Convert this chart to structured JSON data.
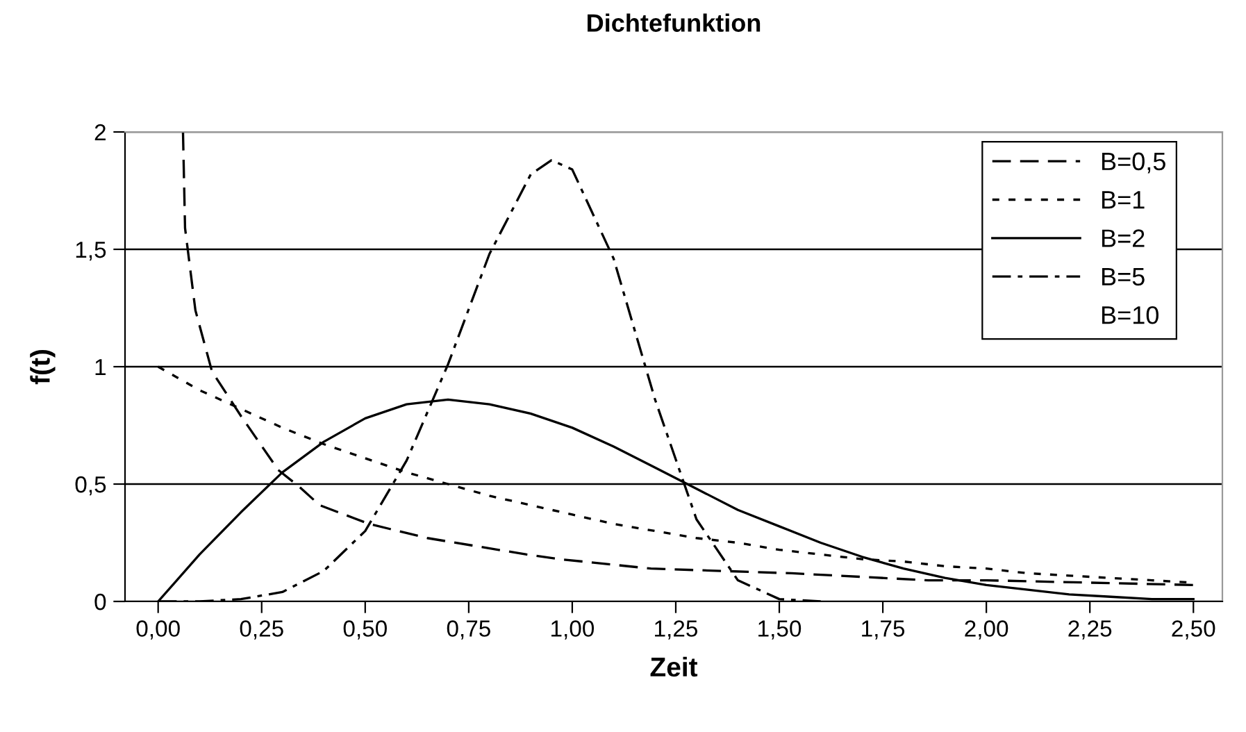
{
  "chart_data": {
    "type": "line",
    "title": "Dichtefunktion",
    "xlabel": "Zeit",
    "ylabel": "f(t)",
    "x": [
      0,
      0.1,
      0.2,
      0.3,
      0.4,
      0.5,
      0.6,
      0.7,
      0.8,
      0.9,
      1.0,
      1.1,
      1.2,
      1.3,
      1.4,
      1.5,
      1.6,
      1.7,
      1.8,
      1.9,
      2.0,
      2.1,
      2.2,
      2.3,
      2.4,
      2.5
    ],
    "series": [
      {
        "name": "B=0,5",
        "color": "#000000",
        "line_style": "dashed",
        "x": [
          0.06,
          0.065,
          0.09,
          0.13,
          0.2,
          0.29,
          0.34,
          0.39,
          0.51,
          0.65,
          0.89,
          0.97,
          1.19,
          1.53,
          1.86,
          2.0,
          2.5
        ],
        "values": [
          2.0,
          1.59,
          1.24,
          0.98,
          0.79,
          0.56,
          0.49,
          0.41,
          0.33,
          0.27,
          0.2,
          0.18,
          0.14,
          0.12,
          0.09,
          0.09,
          0.07
        ]
      },
      {
        "name": "B=1",
        "color": "#000000",
        "line_style": "dotted",
        "values": [
          1,
          0.9,
          0.82,
          0.74,
          0.67,
          0.61,
          0.55,
          0.5,
          0.45,
          0.41,
          0.37,
          0.33,
          0.3,
          0.27,
          0.25,
          0.22,
          0.2,
          0.18,
          0.17,
          0.15,
          0.14,
          0.12,
          0.11,
          0.1,
          0.09,
          0.08
        ]
      },
      {
        "name": "B=2",
        "color": "#000000",
        "line_style": "solid",
        "values": [
          0,
          0.2,
          0.38,
          0.55,
          0.68,
          0.78,
          0.84,
          0.86,
          0.84,
          0.8,
          0.74,
          0.66,
          0.57,
          0.48,
          0.39,
          0.32,
          0.25,
          0.19,
          0.14,
          0.1,
          0.07,
          0.05,
          0.03,
          0.02,
          0.01,
          0.01
        ]
      },
      {
        "name": "B=5",
        "color": "#000000",
        "line_style": "dashdot",
        "x": [
          0,
          0.1,
          0.2,
          0.3,
          0.4,
          0.5,
          0.6,
          0.7,
          0.8,
          0.9,
          0.95,
          1.0,
          1.1,
          1.2,
          1.3,
          1.4,
          1.5,
          1.6
        ],
        "values": [
          0,
          0,
          0.01,
          0.04,
          0.13,
          0.3,
          0.6,
          1.01,
          1.48,
          1.82,
          1.88,
          1.84,
          1.46,
          0.86,
          0.35,
          0.09,
          0.01,
          0
        ]
      },
      {
        "name": "B=10",
        "values": [
          null,
          null,
          null,
          null,
          null,
          null,
          null,
          null,
          null,
          null,
          null,
          null,
          null,
          null,
          null,
          null,
          null,
          null,
          null,
          null,
          null,
          null,
          null,
          null,
          null,
          null
        ]
      }
    ],
    "xlim": [
      -0.08,
      2.57
    ],
    "xticks": [
      {
        "value": 0,
        "label": "0,00"
      },
      {
        "value": 0.25,
        "label": "0,25"
      },
      {
        "value": 0.5,
        "label": "0,50"
      },
      {
        "value": 0.75,
        "label": "0,75"
      },
      {
        "value": 1.0,
        "label": "1,00"
      },
      {
        "value": 1.25,
        "label": "1,25"
      },
      {
        "value": 1.5,
        "label": "1,50"
      },
      {
        "value": 1.75,
        "label": "1,75"
      },
      {
        "value": 2.0,
        "label": "2,00"
      },
      {
        "value": 2.25,
        "label": "2,25"
      },
      {
        "value": 2.5,
        "label": "2,50"
      }
    ],
    "ylim": [
      0,
      2
    ],
    "yticks": [
      0,
      {
        "value": 0.5,
        "label": "0,5"
      },
      1,
      {
        "value": 1.5,
        "label": "1,5"
      },
      2
    ],
    "grid": "y",
    "legend": "top right"
  }
}
